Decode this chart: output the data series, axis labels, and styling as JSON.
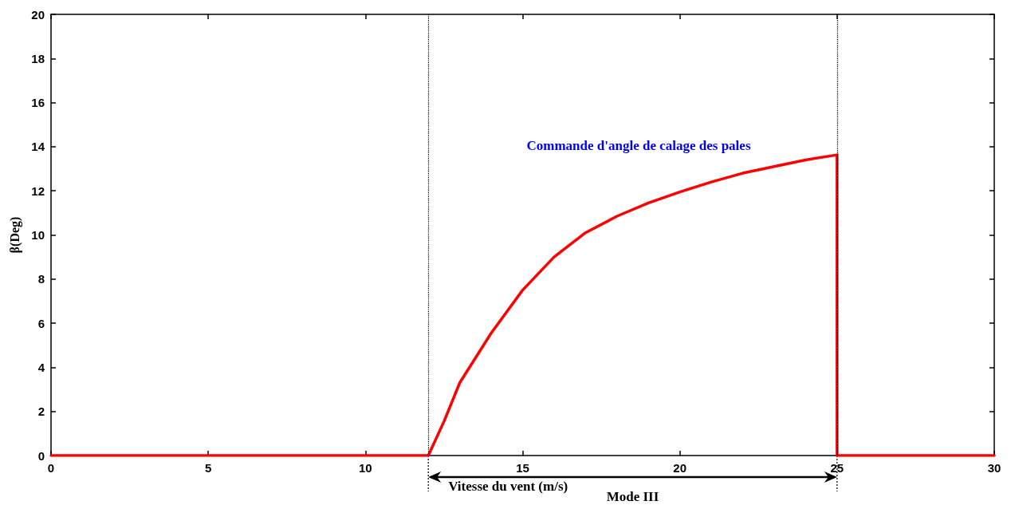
{
  "chart_data": {
    "type": "line",
    "xlabel": "Vitesse du vent (m/s)",
    "ylabel": "β(Deg)",
    "xlim": [
      0,
      30
    ],
    "xticks": [
      0,
      5,
      10,
      15,
      20,
      25,
      30
    ],
    "ylim": [
      0,
      20
    ],
    "yticks": [
      0,
      2,
      4,
      6,
      8,
      10,
      12,
      14,
      16,
      18,
      20
    ],
    "grid": false,
    "marker": "none",
    "line_style": "solid",
    "series": [
      {
        "color": "#ff0000",
        "x": [
          0,
          12,
          12.5,
          13,
          14,
          15,
          16,
          17,
          18,
          19,
          20,
          21,
          22,
          23,
          24,
          25,
          25,
          30
        ],
        "values": [
          0,
          0,
          1.55,
          3.3,
          5.55,
          7.5,
          9.0,
          10.1,
          10.85,
          11.45,
          11.95,
          12.4,
          12.8,
          13.1,
          13.4,
          13.63,
          0,
          0
        ]
      }
    ],
    "ref_lines": [
      {
        "axis": "x",
        "value": 12,
        "color": "#000000",
        "line_style": "dotted"
      },
      {
        "axis": "x",
        "value": 25,
        "color": "#000000",
        "line_style": "dotted"
      }
    ],
    "annotations": [
      "Commande d'angle de calage des pales",
      "Mode III"
    ]
  }
}
